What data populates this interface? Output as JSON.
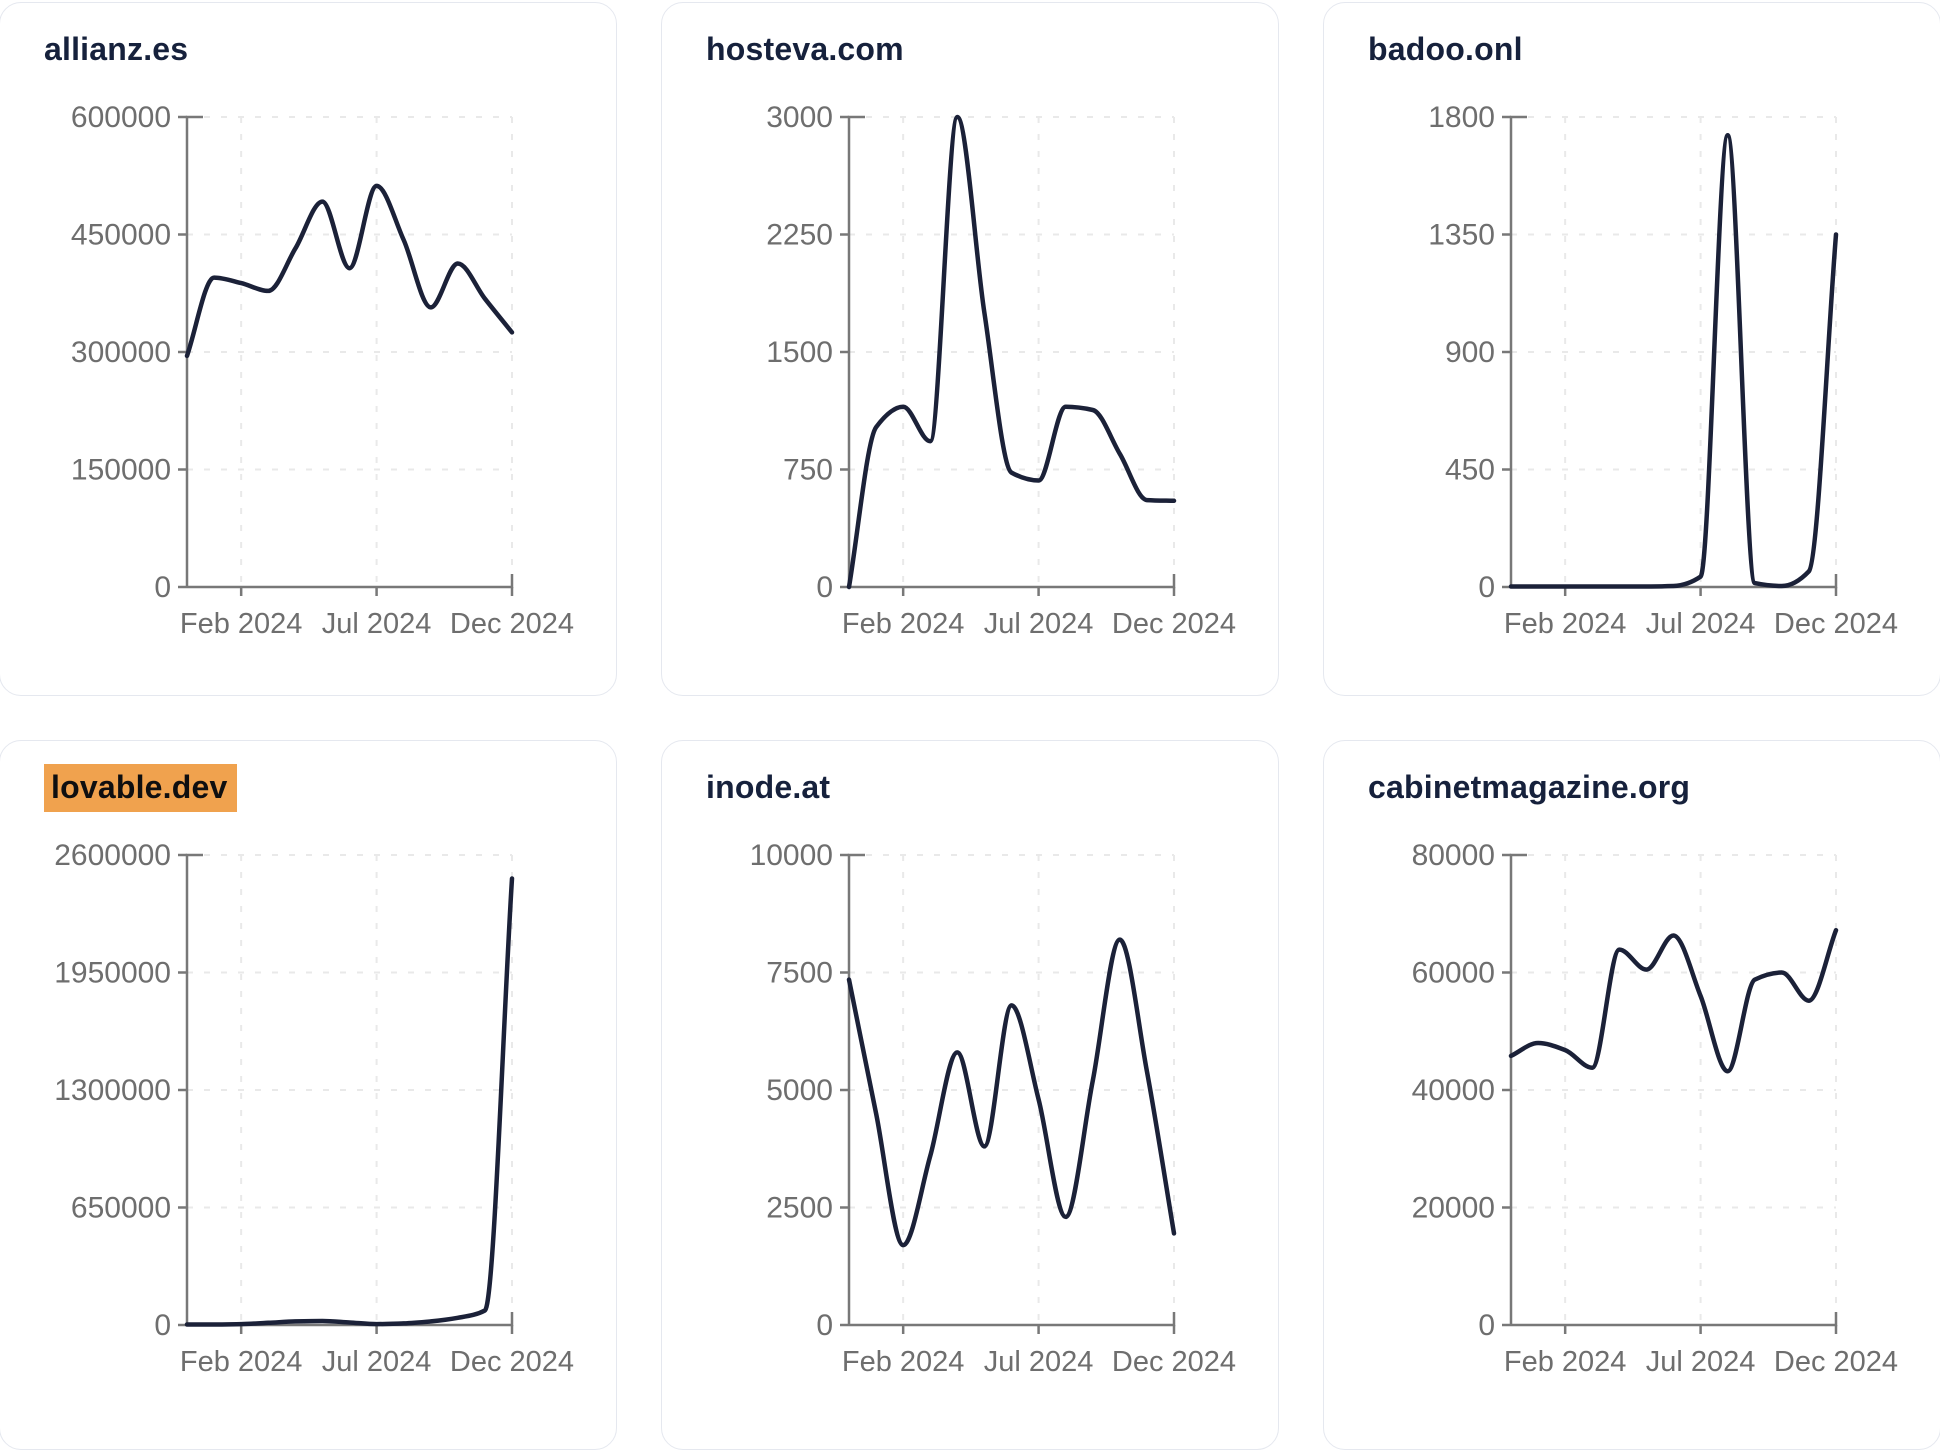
{
  "page": {
    "background": "#ffffff",
    "card_background": "#ffffff",
    "card_border_color": "#e5e8ef"
  },
  "colors": {
    "line": "#1b2138",
    "title_text": "#16213c",
    "axis": "#787878",
    "tick_label": "#6e6e6e",
    "grid": "#e9e9e9",
    "highlight_background": "#f0a24e",
    "highlight_text": "#0f0f10"
  },
  "x_axis": {
    "months": [
      "Dec 2023",
      "Jan 2024",
      "Feb 2024",
      "Mar 2024",
      "Apr 2024",
      "May 2024",
      "Jun 2024",
      "Jul 2024",
      "Aug 2024",
      "Sep 2024",
      "Oct 2024",
      "Nov 2024",
      "Dec 2024"
    ],
    "tick_labels": [
      "Feb 2024",
      "Jul 2024",
      "Dec 2024"
    ],
    "tick_indices": [
      2,
      7,
      12
    ]
  },
  "chart_data": [
    {
      "type": "line",
      "title": "allianz.es",
      "highlighted": false,
      "ylim": [
        0,
        600000
      ],
      "y_ticks": [
        0,
        150000,
        300000,
        450000,
        600000
      ],
      "x": [
        "Dec 2023",
        "Jan 2024",
        "Feb 2024",
        "Mar 2024",
        "Apr 2024",
        "May 2024",
        "Jun 2024",
        "Jul 2024",
        "Aug 2024",
        "Sep 2024",
        "Oct 2024",
        "Nov 2024",
        "Dec 2024"
      ],
      "x_tick_labels": [
        "Feb 2024",
        "Jul 2024",
        "Dec 2024"
      ],
      "values": [
        295000,
        395000,
        388000,
        378000,
        432000,
        492000,
        407000,
        512000,
        443000,
        357000,
        413000,
        368000,
        325000
      ]
    },
    {
      "type": "line",
      "title": "hosteva.com",
      "highlighted": false,
      "ylim": [
        0,
        3000
      ],
      "y_ticks": [
        0,
        750,
        1500,
        2250,
        3000
      ],
      "x": [
        "Dec 2023",
        "Jan 2024",
        "Feb 2024",
        "Mar 2024",
        "Apr 2024",
        "May 2024",
        "Jun 2024",
        "Jul 2024",
        "Aug 2024",
        "Sep 2024",
        "Oct 2024",
        "Nov 2024",
        "Dec 2024"
      ],
      "x_tick_labels": [
        "Feb 2024",
        "Jul 2024",
        "Dec 2024"
      ],
      "values": [
        0,
        1020,
        1150,
        930,
        3000,
        1750,
        730,
        680,
        1150,
        1130,
        850,
        555,
        550
      ]
    },
    {
      "type": "line",
      "title": "badoo.onl",
      "highlighted": false,
      "ylim": [
        0,
        1800
      ],
      "y_ticks": [
        0,
        450,
        900,
        1350,
        1800
      ],
      "x": [
        "Dec 2023",
        "Jan 2024",
        "Feb 2024",
        "Mar 2024",
        "Apr 2024",
        "May 2024",
        "Jun 2024",
        "Jul 2024",
        "Aug 2024",
        "Sep 2024",
        "Oct 2024",
        "Nov 2024",
        "Dec 2024"
      ],
      "x_tick_labels": [
        "Feb 2024",
        "Jul 2024",
        "Dec 2024"
      ],
      "values": [
        2,
        2,
        2,
        2,
        2,
        2,
        4,
        40,
        1730,
        15,
        4,
        60,
        1350
      ]
    },
    {
      "type": "line",
      "title": "lovable.dev",
      "highlighted": true,
      "ylim": [
        0,
        2600000
      ],
      "y_ticks": [
        0,
        650000,
        1300000,
        1950000,
        2600000
      ],
      "x": [
        "Dec 2023",
        "Jan 2024",
        "Feb 2024",
        "Mar 2024",
        "Apr 2024",
        "May 2024",
        "Jun 2024",
        "Jul 2024",
        "Aug 2024",
        "Sep 2024",
        "Oct 2024",
        "Nov 2024",
        "Dec 2024"
      ],
      "x_tick_labels": [
        "Feb 2024",
        "Jul 2024",
        "Dec 2024"
      ],
      "values": [
        3000,
        3000,
        5000,
        12000,
        20000,
        22000,
        14000,
        5000,
        9000,
        20000,
        40000,
        80000,
        2470000
      ]
    },
    {
      "type": "line",
      "title": "inode.at",
      "highlighted": false,
      "ylim": [
        0,
        10000
      ],
      "y_ticks": [
        0,
        2500,
        5000,
        7500,
        10000
      ],
      "x": [
        "Dec 2023",
        "Jan 2024",
        "Feb 2024",
        "Mar 2024",
        "Apr 2024",
        "May 2024",
        "Jun 2024",
        "Jul 2024",
        "Aug 2024",
        "Sep 2024",
        "Oct 2024",
        "Nov 2024",
        "Dec 2024"
      ],
      "x_tick_labels": [
        "Feb 2024",
        "Jul 2024",
        "Dec 2024"
      ],
      "values": [
        7350,
        4500,
        1700,
        3600,
        5800,
        3800,
        6800,
        4800,
        2300,
        5200,
        8200,
        5400,
        1950
      ]
    },
    {
      "type": "line",
      "title": "cabinetmagazine.org",
      "highlighted": false,
      "ylim": [
        0,
        80000
      ],
      "y_ticks": [
        0,
        20000,
        40000,
        60000,
        80000
      ],
      "x": [
        "Dec 2023",
        "Jan 2024",
        "Feb 2024",
        "Mar 2024",
        "Apr 2024",
        "May 2024",
        "Jun 2024",
        "Jul 2024",
        "Aug 2024",
        "Sep 2024",
        "Oct 2024",
        "Nov 2024",
        "Dec 2024"
      ],
      "x_tick_labels": [
        "Feb 2024",
        "Jul 2024",
        "Dec 2024"
      ],
      "values": [
        45800,
        48000,
        46800,
        43800,
        63900,
        60500,
        66300,
        56000,
        43200,
        58800,
        60000,
        55200,
        67200
      ]
    }
  ]
}
